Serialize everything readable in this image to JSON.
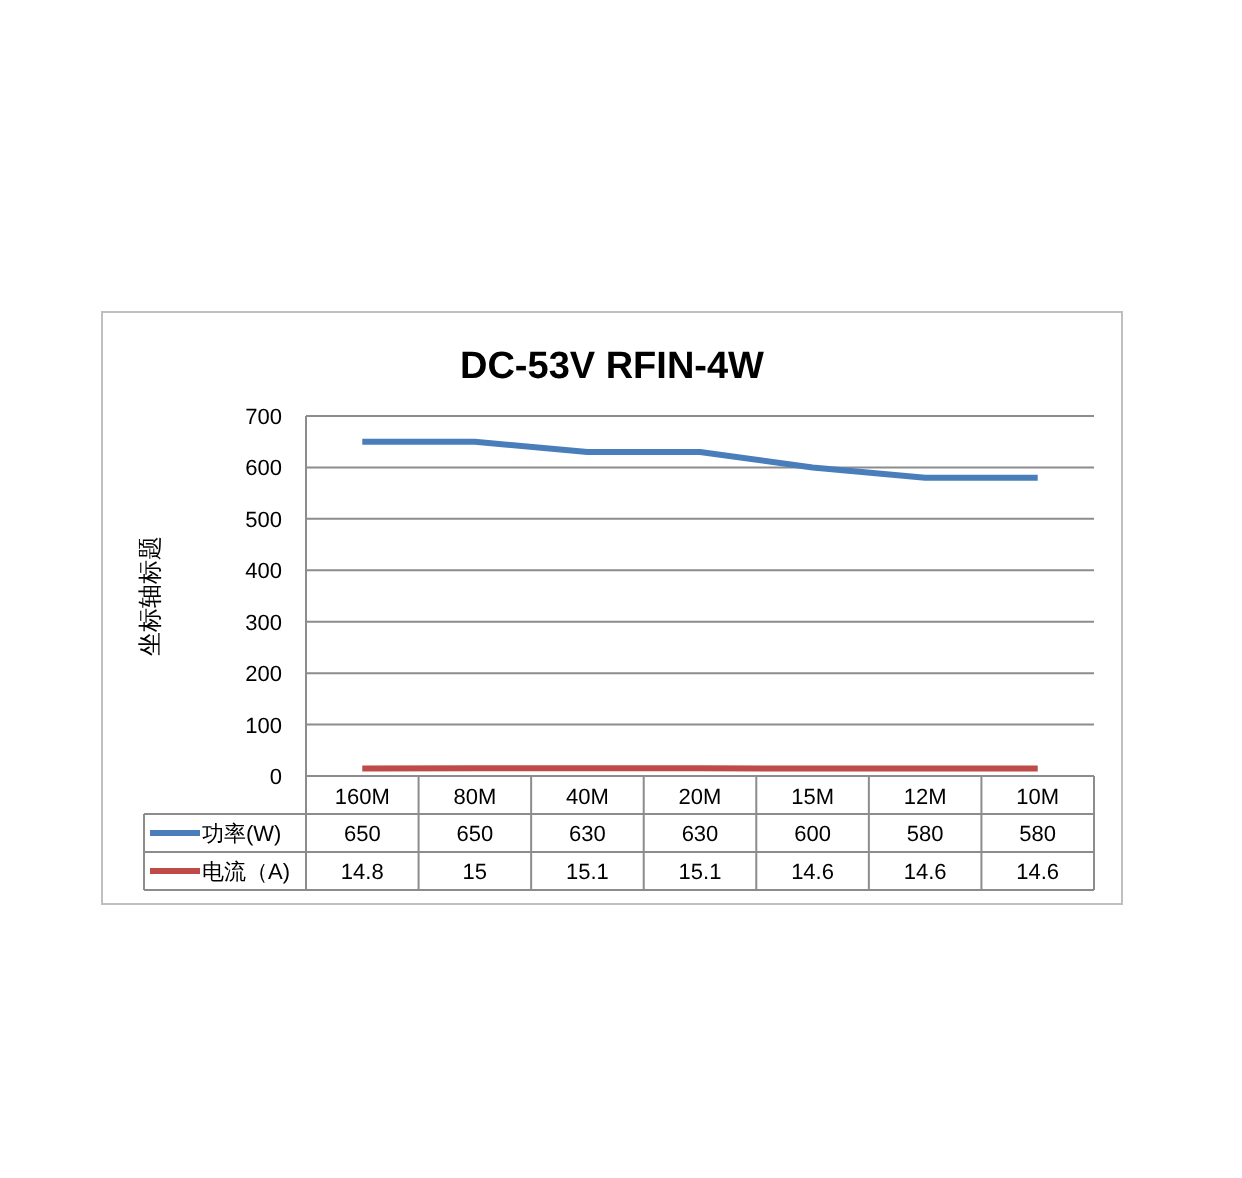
{
  "chart_data": {
    "type": "line",
    "title": "DC-53V   RFIN-4W",
    "ylabel": "坐标轴标题",
    "categories": [
      "160M",
      "80M",
      "40M",
      "20M",
      "15M",
      "12M",
      "10M"
    ],
    "series": [
      {
        "name": "功率(W)",
        "color": "#4a7ebb",
        "values": [
          650,
          650,
          630,
          630,
          600,
          580,
          580
        ]
      },
      {
        "name": "电流（A)",
        "color": "#be4b48",
        "values": [
          14.8,
          15,
          15.1,
          15.1,
          14.6,
          14.6,
          14.6
        ]
      }
    ],
    "ylim": [
      0,
      700
    ],
    "yticks": [
      0,
      100,
      200,
      300,
      400,
      500,
      600,
      700
    ],
    "grid": "y",
    "legend": "bottom",
    "data_labels": true
  }
}
